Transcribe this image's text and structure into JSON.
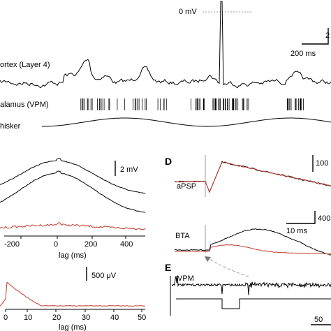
{
  "top": {
    "zero_mv_label": "0 mV",
    "scale_partial": "2",
    "scale_time": "200 ms",
    "cortex_label": "ortex (Layer 4)",
    "thalamus_label": "alamus (VPM)",
    "whisker_label": "hisker"
  },
  "panel_c": {
    "scale_label": "2 mV",
    "xlabel": "lag (ms)",
    "xticks": [
      "-200",
      "0",
      "200",
      "400"
    ]
  },
  "panel_c_lower": {
    "scale_label": "500 μV",
    "xlabel": "lag (ms)",
    "xticks": [
      "0",
      "10",
      "20",
      "30",
      "40",
      "50"
    ]
  },
  "panel_d": {
    "letter": "D",
    "apsp_label": "aPSP",
    "bta_label": "BTA",
    "scale_top": "100",
    "scale_mid": "400",
    "scale_time": "10 ms"
  },
  "panel_e": {
    "letter": "E",
    "vpm_label": "VPM",
    "scale_partial": "50"
  },
  "colors": {
    "trace": "#000000",
    "red_trace": "#c0392b"
  }
}
